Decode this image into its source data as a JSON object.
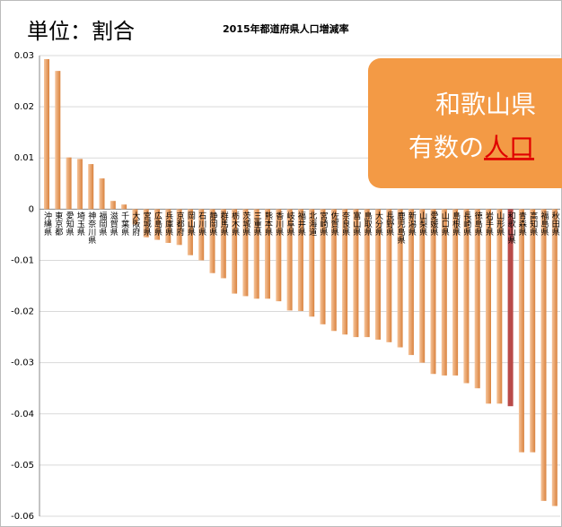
{
  "chart_data": {
    "type": "bar",
    "title": "2015年都道府県人口増減率",
    "unit_label": "単位：割合",
    "categories": [
      "沖縄県",
      "東京都",
      "愛知県",
      "埼玉県",
      "神奈川県",
      "福岡県",
      "滋賀県",
      "千葉県",
      "大阪府",
      "宮城県",
      "広島県",
      "兵庫県",
      "京都府",
      "岡山県",
      "石川県",
      "静岡県",
      "群馬県",
      "栃木県",
      "茨城県",
      "三重県",
      "熊本県",
      "香川県",
      "岐阜県",
      "福井県",
      "北海道",
      "宮崎県",
      "佐賀県",
      "奈良県",
      "富山県",
      "鳥取県",
      "大分県",
      "長野県",
      "鹿児島県",
      "新潟県",
      "山梨県",
      "愛媛県",
      "山口県",
      "島根県",
      "長崎県",
      "徳島県",
      "岩手県",
      "山形県",
      "和歌山県",
      "青森県",
      "高知県",
      "福島県",
      "秋田県"
    ],
    "values": [
      0.0293,
      0.027,
      0.0101,
      0.0098,
      0.0088,
      0.006,
      0.0016,
      0.0009,
      -0.003,
      -0.0055,
      -0.006,
      -0.0066,
      -0.007,
      -0.009,
      -0.01,
      -0.0125,
      -0.0135,
      -0.0165,
      -0.017,
      -0.0175,
      -0.0175,
      -0.018,
      -0.0198,
      -0.0199,
      -0.021,
      -0.0225,
      -0.0238,
      -0.0245,
      -0.025,
      -0.025,
      -0.0255,
      -0.026,
      -0.027,
      -0.0285,
      -0.03,
      -0.0322,
      -0.0325,
      -0.0325,
      -0.034,
      -0.035,
      -0.038,
      -0.038,
      -0.0385,
      -0.0475,
      -0.0475,
      -0.057,
      -0.058
    ],
    "color": "#e89a5c",
    "highlight_category": "和歌山県",
    "highlight_color": "#b94a48",
    "ylim": [
      -0.06,
      0.03
    ],
    "yticks": [
      0.03,
      0.02,
      0.01,
      0,
      -0.01,
      -0.02,
      -0.03,
      -0.04,
      -0.05,
      -0.06
    ],
    "grid": true,
    "callout": {
      "line1": "和歌山県",
      "line2_prefix": "有数の",
      "line2_emphasis": "人口"
    }
  }
}
